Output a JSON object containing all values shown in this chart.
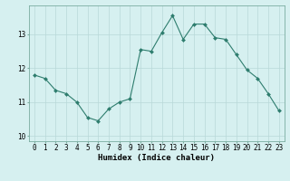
{
  "x": [
    0,
    1,
    2,
    3,
    4,
    5,
    6,
    7,
    8,
    9,
    10,
    11,
    12,
    13,
    14,
    15,
    16,
    17,
    18,
    19,
    20,
    21,
    22,
    23
  ],
  "y": [
    11.8,
    11.7,
    11.35,
    11.25,
    11.0,
    10.55,
    10.45,
    10.8,
    11.0,
    11.1,
    12.55,
    12.5,
    13.05,
    13.55,
    12.85,
    13.3,
    13.3,
    12.9,
    12.85,
    12.4,
    11.95,
    11.7,
    11.25,
    10.75
  ],
  "line_color": "#2e7d6e",
  "marker": "D",
  "marker_size": 2.0,
  "bg_color": "#d6f0f0",
  "grid_color": "#b8d8d8",
  "axis_bg": "#d6f0f0",
  "xlabel": "Humidex (Indice chaleur)",
  "xlabel_fontsize": 6.5,
  "tick_fontsize": 5.5,
  "yticks": [
    10,
    11,
    12,
    13
  ],
  "xticks": [
    0,
    1,
    2,
    3,
    4,
    5,
    6,
    7,
    8,
    9,
    10,
    11,
    12,
    13,
    14,
    15,
    16,
    17,
    18,
    19,
    20,
    21,
    22,
    23
  ],
  "xlim": [
    -0.5,
    23.5
  ],
  "ylim": [
    9.85,
    13.85
  ]
}
